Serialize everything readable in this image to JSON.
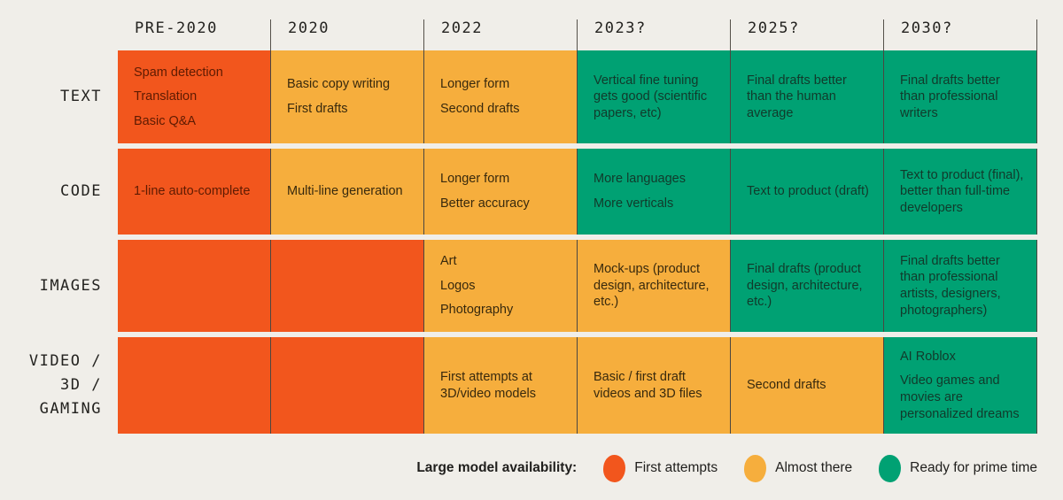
{
  "palette": {
    "background": "#F0EEE9",
    "first_attempts": "#F2561D",
    "almost_there": "#F6AE3D",
    "ready_for_prime_time": "#00A173",
    "first_attempts_text": "#5E1B02",
    "almost_there_text": "#38290D",
    "ready_for_prime_time_text": "#113A2B",
    "divider": "#4B4741",
    "heading_text": "#23221F"
  },
  "chart_data": {
    "type": "table",
    "columns": [
      "PRE-2020",
      "2020",
      "2022",
      "2023?",
      "2025?",
      "2030?"
    ],
    "rows": [
      {
        "label": "TEXT",
        "label_lines": [
          "TEXT"
        ],
        "cells": [
          {
            "status": "first_attempts",
            "items": [
              "Spam detection",
              "Translation",
              "Basic Q&A"
            ]
          },
          {
            "status": "almost_there",
            "items": [
              "Basic copy writing",
              "First drafts"
            ]
          },
          {
            "status": "almost_there",
            "items": [
              "Longer form",
              "Second drafts"
            ]
          },
          {
            "status": "ready_for_prime_time",
            "items": [
              "Vertical fine tuning gets good (scientific papers, etc)"
            ]
          },
          {
            "status": "ready_for_prime_time",
            "items": [
              "Final drafts better than the human average"
            ]
          },
          {
            "status": "ready_for_prime_time",
            "items": [
              "Final drafts better than professional writers"
            ]
          }
        ]
      },
      {
        "label": "CODE",
        "label_lines": [
          "CODE"
        ],
        "cells": [
          {
            "status": "first_attempts",
            "items": [
              "1-line auto-complete"
            ]
          },
          {
            "status": "almost_there",
            "items": [
              "Multi-line generation"
            ]
          },
          {
            "status": "almost_there",
            "items": [
              "Longer form",
              "Better accuracy"
            ]
          },
          {
            "status": "ready_for_prime_time",
            "items": [
              "More languages",
              "More verticals"
            ]
          },
          {
            "status": "ready_for_prime_time",
            "items": [
              "Text to product (draft)"
            ]
          },
          {
            "status": "ready_for_prime_time",
            "items": [
              "Text to product (final), better than full-time developers"
            ]
          }
        ]
      },
      {
        "label": "IMAGES",
        "label_lines": [
          "IMAGES"
        ],
        "cells": [
          {
            "status": "first_attempts",
            "items": []
          },
          {
            "status": "first_attempts",
            "items": []
          },
          {
            "status": "almost_there",
            "items": [
              "Art",
              "Logos",
              "Photography"
            ]
          },
          {
            "status": "almost_there",
            "items": [
              "Mock-ups (product design, architecture, etc.)"
            ]
          },
          {
            "status": "ready_for_prime_time",
            "items": [
              "Final drafts (product design, architecture, etc.)"
            ]
          },
          {
            "status": "ready_for_prime_time",
            "items": [
              "Final drafts better than professional artists, designers, photographers)"
            ]
          }
        ]
      },
      {
        "label": "VIDEO / 3D / GAMING",
        "label_lines": [
          "VIDEO /",
          "3D /",
          "GAMING"
        ],
        "cells": [
          {
            "status": "first_attempts",
            "items": []
          },
          {
            "status": "first_attempts",
            "items": []
          },
          {
            "status": "almost_there",
            "items": [
              "First attempts at 3D/video models"
            ]
          },
          {
            "status": "almost_there",
            "items": [
              "Basic / first draft videos and 3D files"
            ]
          },
          {
            "status": "almost_there",
            "items": [
              "Second drafts"
            ]
          },
          {
            "status": "ready_for_prime_time",
            "items": [
              "AI Roblox",
              "Video games and movies are personalized dreams"
            ]
          }
        ]
      }
    ],
    "legend": {
      "title": "Large model availability:",
      "entries": [
        {
          "label": "First attempts",
          "status": "first_attempts",
          "color": "#F2561D"
        },
        {
          "label": "Almost there",
          "status": "almost_there",
          "color": "#F6AE3D"
        },
        {
          "label": "Ready for prime time",
          "status": "ready_for_prime_time",
          "color": "#00A173"
        }
      ]
    }
  }
}
